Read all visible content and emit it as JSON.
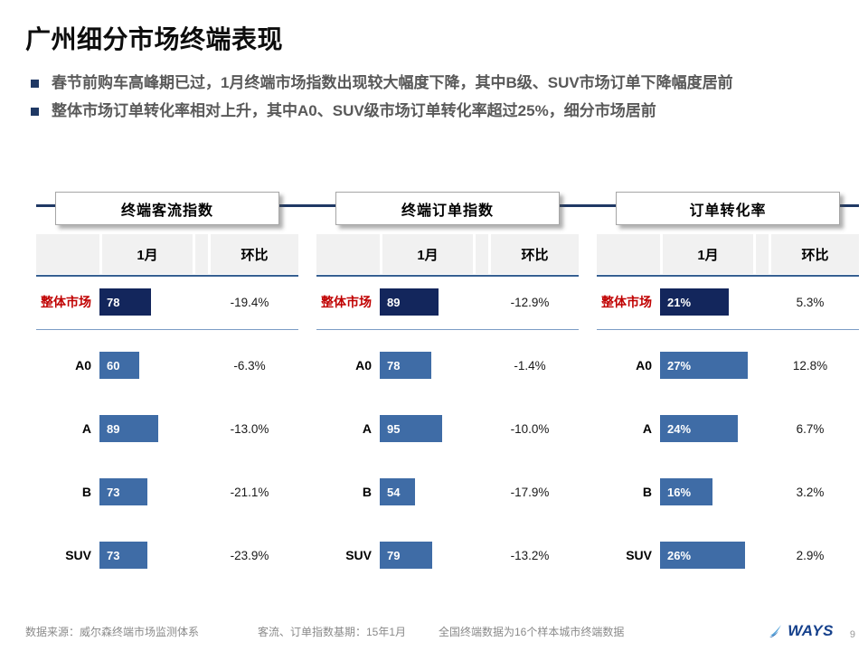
{
  "slide": {
    "title": "广州细分市场终端表现",
    "bullets": [
      "春节前购车高峰期已过，1月终端市场指数出现较大幅度下降，其中B级、SUV市场订单下降幅度居前",
      "整体市场订单转化率相对上升，其中A0、SUV级市场订单转化率超过25%，细分市场居前"
    ]
  },
  "columns": {
    "month": "1月",
    "mom": "环比"
  },
  "panels": [
    {
      "title": "终端客流指数",
      "rows": [
        {
          "label": "整体市场",
          "value": "78",
          "num": 78,
          "mom": "-19.4%"
        },
        {
          "label": "A0",
          "value": "60",
          "num": 60,
          "mom": "-6.3%"
        },
        {
          "label": "A",
          "value": "89",
          "num": 89,
          "mom": "-13.0%"
        },
        {
          "label": "B",
          "value": "73",
          "num": 73,
          "mom": "-21.1%"
        },
        {
          "label": "SUV",
          "value": "73",
          "num": 73,
          "mom": "-23.9%"
        }
      ]
    },
    {
      "title": "终端订单指数",
      "rows": [
        {
          "label": "整体市场",
          "value": "89",
          "num": 89,
          "mom": "-12.9%"
        },
        {
          "label": "A0",
          "value": "78",
          "num": 78,
          "mom": "-1.4%"
        },
        {
          "label": "A",
          "value": "95",
          "num": 95,
          "mom": "-10.0%"
        },
        {
          "label": "B",
          "value": "54",
          "num": 54,
          "mom": "-17.9%"
        },
        {
          "label": "SUV",
          "value": "79",
          "num": 79,
          "mom": "-13.2%"
        }
      ]
    },
    {
      "title": "订单转化率",
      "rows": [
        {
          "label": "整体市场",
          "value": "21%",
          "num": 21,
          "mom": "5.3%"
        },
        {
          "label": "A0",
          "value": "27%",
          "num": 27,
          "mom": "12.8%"
        },
        {
          "label": "A",
          "value": "24%",
          "num": 24,
          "mom": "6.7%"
        },
        {
          "label": "B",
          "value": "16%",
          "num": 16,
          "mom": "3.2%"
        },
        {
          "label": "SUV",
          "value": "26%",
          "num": 26,
          "mom": "2.9%"
        }
      ]
    }
  ],
  "footer": {
    "source": "数据来源：威尔森终端市场监测体系",
    "base_period": "客流、订单指数基期：15年1月",
    "sample_note": "全国终端数据为16个样本城市终端数据",
    "logo_text": "WAYS",
    "page_number": "9"
  },
  "colors": {
    "bar_overall": "#13265C",
    "bar_segment": "#3F6CA6",
    "overall_label_red": "#C00000",
    "top_rule_navy": "#1F3864",
    "header_rule_blue": "#376092",
    "separator_blue": "#7A9CC5",
    "bullet_navy": "#1F3864",
    "logo_blue": "#16418C",
    "logo_swoosh": "#4FA0D8"
  },
  "chart_data": [
    {
      "type": "bar",
      "orientation": "horizontal",
      "title": "终端客流指数",
      "categories": [
        "整体市场",
        "A0",
        "A",
        "B",
        "SUV"
      ],
      "series": [
        {
          "name": "1月",
          "values": [
            78,
            60,
            89,
            73,
            73
          ]
        },
        {
          "name": "环比",
          "values": [
            -19.4,
            -6.3,
            -13.0,
            -21.1,
            -23.9
          ],
          "unit": "%"
        }
      ],
      "xlim": [
        0,
        100
      ],
      "grid": false,
      "legend": false
    },
    {
      "type": "bar",
      "orientation": "horizontal",
      "title": "终端订单指数",
      "categories": [
        "整体市场",
        "A0",
        "A",
        "B",
        "SUV"
      ],
      "series": [
        {
          "name": "1月",
          "values": [
            89,
            78,
            95,
            54,
            79
          ]
        },
        {
          "name": "环比",
          "values": [
            -12.9,
            -1.4,
            -10.0,
            -17.9,
            -13.2
          ],
          "unit": "%"
        }
      ],
      "xlim": [
        0,
        100
      ],
      "grid": false,
      "legend": false
    },
    {
      "type": "bar",
      "orientation": "horizontal",
      "title": "订单转化率",
      "categories": [
        "整体市场",
        "A0",
        "A",
        "B",
        "SUV"
      ],
      "series": [
        {
          "name": "1月",
          "values": [
            21,
            27,
            24,
            16,
            26
          ],
          "unit": "%"
        },
        {
          "name": "环比",
          "values": [
            5.3,
            12.8,
            6.7,
            3.2,
            2.9
          ],
          "unit": "%"
        }
      ],
      "xlim": [
        0,
        30
      ],
      "grid": false,
      "legend": false
    }
  ]
}
